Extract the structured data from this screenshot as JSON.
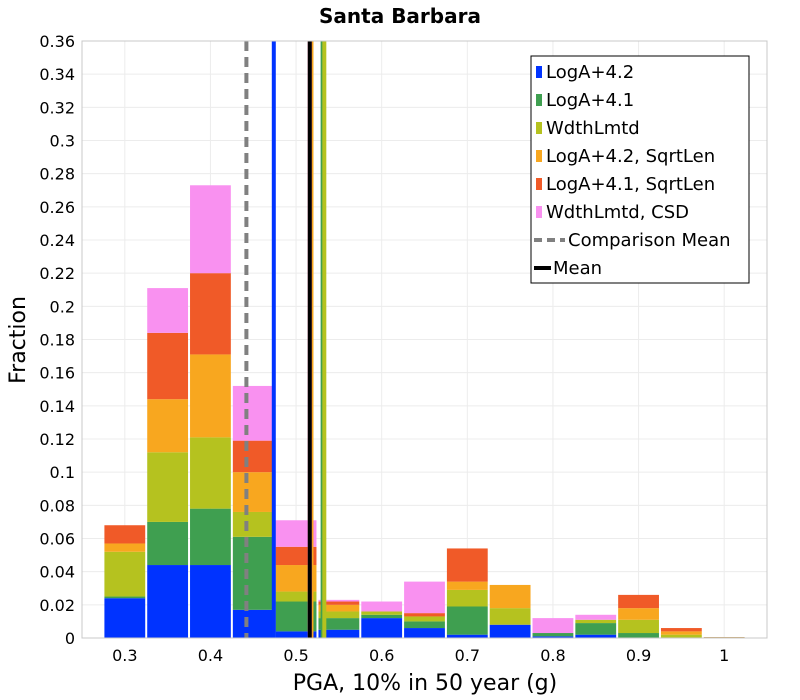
{
  "chart_data": {
    "type": "bar",
    "title": "Santa Barbara",
    "xlabel": "PGA, 10% in 50 year (g)",
    "ylabel": "Fraction",
    "xlim": [
      0.25,
      1.05
    ],
    "ylim": [
      0,
      0.36
    ],
    "stacked": true,
    "grid": true,
    "legend_position": "top-right",
    "x_ticks": [
      "0.3",
      "0.4",
      "0.5",
      "0.6",
      "0.7",
      "0.8",
      "0.9",
      "1"
    ],
    "y_ticks": [
      "0",
      "0.02",
      "0.04",
      "0.06",
      "0.08",
      "0.1",
      "0.12",
      "0.14",
      "0.16",
      "0.18",
      "0.2",
      "0.22",
      "0.24",
      "0.26",
      "0.28",
      "0.3",
      "0.32",
      "0.34",
      "0.36"
    ],
    "bin_width": 0.05,
    "x": [
      0.3,
      0.35,
      0.4,
      0.45,
      0.5,
      0.55,
      0.6,
      0.65,
      0.7,
      0.75,
      0.8,
      0.85,
      0.9,
      0.95,
      1.0
    ],
    "series": [
      {
        "name": "LogA+4.2",
        "color": "#0033ff",
        "values": [
          0.024,
          0.044,
          0.044,
          0.017,
          0.004,
          0.005,
          0.012,
          0.006,
          0.002,
          0.008,
          0.001,
          0.002,
          0.0,
          0.0,
          0.0
        ]
      },
      {
        "name": "LogA+4.1",
        "color": "#3f9f50",
        "values": [
          0.001,
          0.026,
          0.034,
          0.044,
          0.018,
          0.007,
          0.002,
          0.004,
          0.017,
          0.0,
          0.002,
          0.007,
          0.003,
          0.0,
          0.0
        ]
      },
      {
        "name": "WdthLmtd",
        "color": "#b5c21f",
        "values": [
          0.027,
          0.042,
          0.043,
          0.015,
          0.006,
          0.004,
          0.002,
          0.003,
          0.01,
          0.01,
          0.0,
          0.002,
          0.008,
          0.002,
          0.0
        ]
      },
      {
        "name": "LogA+4.2, SqrtLen",
        "color": "#f8a71f",
        "values": [
          0.005,
          0.032,
          0.05,
          0.024,
          0.016,
          0.004,
          0.0,
          0.0,
          0.005,
          0.014,
          0.0,
          0.0,
          0.007,
          0.002,
          0.0
        ]
      },
      {
        "name": "LogA+4.1, SqrtLen",
        "color": "#f05a28",
        "values": [
          0.011,
          0.04,
          0.049,
          0.019,
          0.011,
          0.002,
          0.0,
          0.002,
          0.02,
          0.0,
          0.0,
          0.0,
          0.008,
          0.002,
          0.0
        ]
      },
      {
        "name": "WdthLmtd, CSD",
        "color": "#f991f0",
        "values": [
          0.0,
          0.027,
          0.053,
          0.033,
          0.016,
          0.001,
          0.006,
          0.019,
          0.0,
          0.0,
          0.009,
          0.003,
          0.0,
          0.0,
          0.0
        ]
      }
    ],
    "mean_lines": [
      {
        "series": "LogA+4.2",
        "x": 0.474,
        "color": "#0033ff",
        "style": "solid"
      },
      {
        "series": "LogA+4.1",
        "x": 0.531,
        "color": "#3f9f50",
        "style": "solid"
      },
      {
        "series": "WdthLmtd",
        "x": 0.533,
        "color": "#b5c21f",
        "style": "solid"
      },
      {
        "series": "LogA+4.2, SqrtLen",
        "x": 0.518,
        "color": "#f8a71f",
        "style": "solid"
      },
      {
        "series": "LogA+4.1, SqrtLen",
        "x": 0.516,
        "color": "#f05a28",
        "style": "solid"
      },
      {
        "series": "WdthLmtd, CSD",
        "x": 0.516,
        "color": "#f991f0",
        "style": "solid"
      }
    ],
    "comparison_mean": {
      "x": 0.442,
      "color": "#808080",
      "style": "dashed"
    },
    "overall_mean": {
      "x": 0.516,
      "color": "#000000",
      "style": "solid"
    },
    "legend": [
      {
        "label": "LogA+4.2",
        "kind": "box",
        "color": "#0033ff"
      },
      {
        "label": "LogA+4.1",
        "kind": "box",
        "color": "#3f9f50"
      },
      {
        "label": "WdthLmtd",
        "kind": "box",
        "color": "#b5c21f"
      },
      {
        "label": "LogA+4.2, SqrtLen",
        "kind": "box",
        "color": "#f8a71f"
      },
      {
        "label": "LogA+4.1, SqrtLen",
        "kind": "box",
        "color": "#f05a28"
      },
      {
        "label": "WdthLmtd, CSD",
        "kind": "box",
        "color": "#f991f0"
      },
      {
        "label": "Comparison Mean",
        "kind": "dashed",
        "color": "#808080"
      },
      {
        "label": "Mean",
        "kind": "line",
        "color": "#000000"
      }
    ]
  }
}
